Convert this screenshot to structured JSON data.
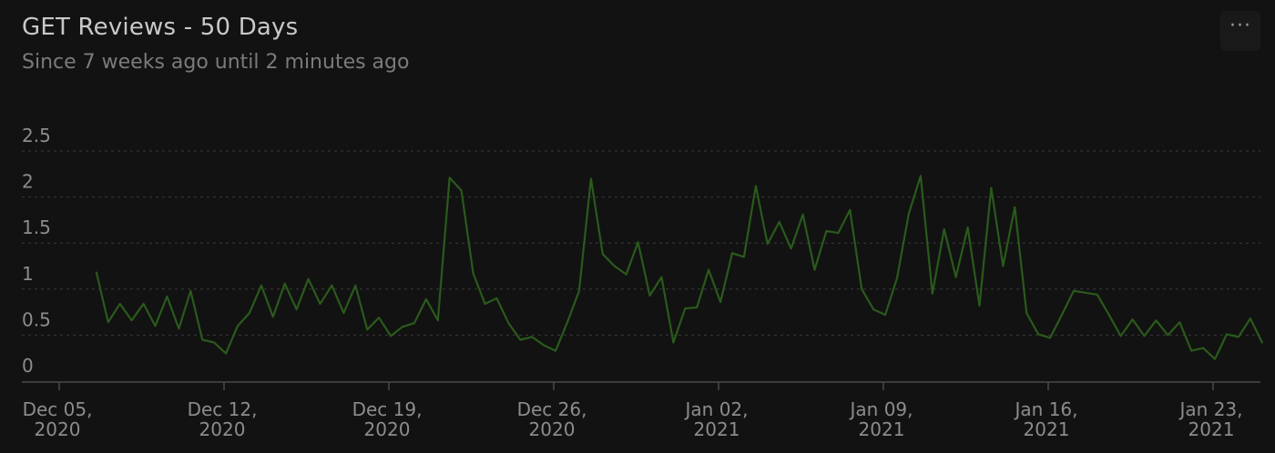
{
  "header": {
    "title": "GET Reviews - 50 Days",
    "subtitle": "Since 7 weeks ago until 2 minutes ago"
  },
  "menu": {
    "more_icon": "more-horizontal-icon",
    "more_label": "···"
  },
  "chart_data": {
    "type": "line",
    "title": "GET Reviews - 50 Days",
    "subtitle": "Since 7 weeks ago until 2 minutes ago",
    "xlabel": "",
    "ylabel": "",
    "ylim": [
      0,
      2.5
    ],
    "grid": true,
    "legend": "none",
    "color": "#2a5a1c",
    "y_ticks": [
      "2.5",
      "2",
      "1.5",
      "1",
      "0.5",
      "0"
    ],
    "x_ticks": [
      {
        "line1": "Dec 05,",
        "line2": "2020"
      },
      {
        "line1": "Dec 12,",
        "line2": "2020"
      },
      {
        "line1": "Dec 19,",
        "line2": "2020"
      },
      {
        "line1": "Dec 26,",
        "line2": "2020"
      },
      {
        "line1": "Jan 02,",
        "line2": "2021"
      },
      {
        "line1": "Jan 09,",
        "line2": "2021"
      },
      {
        "line1": "Jan 16,",
        "line2": "2021"
      },
      {
        "line1": "Jan 23,",
        "line2": "2021"
      }
    ],
    "series": [
      {
        "values": [
          [
            1.58,
            1.18
          ],
          [
            2.08,
            0.64
          ],
          [
            2.58,
            0.84
          ],
          [
            3.08,
            0.66
          ],
          [
            3.58,
            0.84
          ],
          [
            4.08,
            0.6
          ],
          [
            4.58,
            0.92
          ],
          [
            5.08,
            0.57
          ],
          [
            5.58,
            0.98
          ],
          [
            6.08,
            0.45
          ],
          [
            6.58,
            0.42
          ],
          [
            7.08,
            0.3
          ],
          [
            7.58,
            0.6
          ],
          [
            8.08,
            0.74
          ],
          [
            8.58,
            1.04
          ],
          [
            9.08,
            0.7
          ],
          [
            9.58,
            1.06
          ],
          [
            10.08,
            0.78
          ],
          [
            10.58,
            1.11
          ],
          [
            11.08,
            0.84
          ],
          [
            11.58,
            1.04
          ],
          [
            12.08,
            0.74
          ],
          [
            12.58,
            1.04
          ],
          [
            13.08,
            0.56
          ],
          [
            13.58,
            0.69
          ],
          [
            14.08,
            0.49
          ],
          [
            14.58,
            0.59
          ],
          [
            15.08,
            0.63
          ],
          [
            15.58,
            0.89
          ],
          [
            16.08,
            0.66
          ],
          [
            16.58,
            2.21
          ],
          [
            17.08,
            2.07
          ],
          [
            17.58,
            1.17
          ],
          [
            18.08,
            0.84
          ],
          [
            18.58,
            0.9
          ],
          [
            19.08,
            0.63
          ],
          [
            19.58,
            0.45
          ],
          [
            20.08,
            0.48
          ],
          [
            20.58,
            0.39
          ],
          [
            21.08,
            0.33
          ],
          [
            21.58,
            0.64
          ],
          [
            22.08,
            0.98
          ],
          [
            22.58,
            2.2
          ],
          [
            23.08,
            1.38
          ],
          [
            23.58,
            1.25
          ],
          [
            24.08,
            1.16
          ],
          [
            24.58,
            1.51
          ],
          [
            25.08,
            0.93
          ],
          [
            25.58,
            1.13
          ],
          [
            26.08,
            0.42
          ],
          [
            26.58,
            0.79
          ],
          [
            27.08,
            0.8
          ],
          [
            27.58,
            1.21
          ],
          [
            28.08,
            0.86
          ],
          [
            28.58,
            1.39
          ],
          [
            29.08,
            1.35
          ],
          [
            29.58,
            2.12
          ],
          [
            30.08,
            1.49
          ],
          [
            30.58,
            1.73
          ],
          [
            31.08,
            1.44
          ],
          [
            31.58,
            1.81
          ],
          [
            32.08,
            1.21
          ],
          [
            32.58,
            1.63
          ],
          [
            33.08,
            1.61
          ],
          [
            33.58,
            1.86
          ],
          [
            34.08,
            1.0
          ],
          [
            34.58,
            0.78
          ],
          [
            35.08,
            0.72
          ],
          [
            35.58,
            1.12
          ],
          [
            36.08,
            1.82
          ],
          [
            36.58,
            2.23
          ],
          [
            37.08,
            0.95
          ],
          [
            37.58,
            1.65
          ],
          [
            38.08,
            1.13
          ],
          [
            38.58,
            1.67
          ],
          [
            39.08,
            0.82
          ],
          [
            39.58,
            2.1
          ],
          [
            40.08,
            1.25
          ],
          [
            40.58,
            1.89
          ],
          [
            41.08,
            0.74
          ],
          [
            41.58,
            0.51
          ],
          [
            42.08,
            0.47
          ],
          [
            42.58,
            0.72
          ],
          [
            43.08,
            0.98
          ],
          [
            43.58,
            0.96
          ],
          [
            44.08,
            0.94
          ],
          [
            44.58,
            0.72
          ],
          [
            45.08,
            0.49
          ],
          [
            45.58,
            0.67
          ],
          [
            46.08,
            0.49
          ],
          [
            46.58,
            0.66
          ],
          [
            47.08,
            0.5
          ],
          [
            47.58,
            0.64
          ],
          [
            48.08,
            0.33
          ],
          [
            48.58,
            0.36
          ],
          [
            49.08,
            0.24
          ],
          [
            49.58,
            0.51
          ],
          [
            50.08,
            0.48
          ],
          [
            50.58,
            0.68
          ],
          [
            51.08,
            0.42
          ]
        ]
      }
    ]
  }
}
